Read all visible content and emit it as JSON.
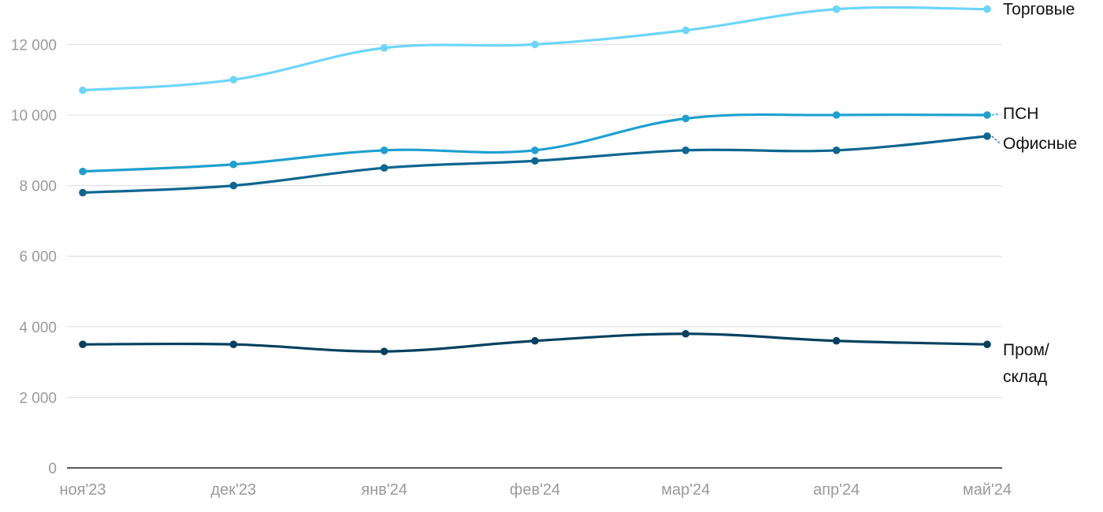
{
  "chart_data": {
    "type": "line",
    "categories": [
      "ноя'23",
      "дек'23",
      "янв'24",
      "фев'24",
      "мар'24",
      "апр'24",
      "май'24"
    ],
    "ylim": [
      0,
      13000
    ],
    "yticks": [
      0,
      2000,
      4000,
      6000,
      8000,
      10000,
      12000
    ],
    "ytick_labels": [
      "0",
      "2 000",
      "4 000",
      "6 000",
      "8 000",
      "10 000",
      "12 000"
    ],
    "grid": true,
    "legend": "inline-right",
    "series": [
      {
        "name": "Торговые",
        "color": "#6dd5fa",
        "values": [
          10700,
          11000,
          11900,
          12000,
          12400,
          13000,
          13000
        ]
      },
      {
        "name": "ПСН",
        "color": "#1ea0cf",
        "values": [
          8400,
          8600,
          9000,
          9000,
          9900,
          10000,
          10000
        ]
      },
      {
        "name": "Офисные",
        "color": "#0d6690",
        "values": [
          7800,
          8000,
          8500,
          8700,
          9000,
          9000,
          9400
        ]
      },
      {
        "name": "Пром/ склад",
        "color": "#04405f",
        "values": [
          3500,
          3500,
          3300,
          3600,
          3800,
          3600,
          3500
        ]
      }
    ]
  }
}
